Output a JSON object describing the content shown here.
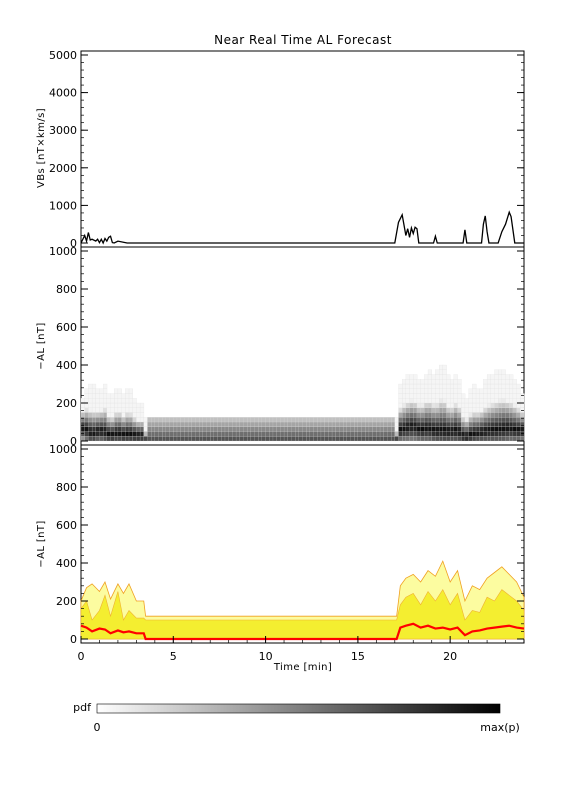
{
  "chart_data": [
    {
      "type": "line",
      "title": "Near Real Time AL Forecast",
      "ylabel": "VBs [nT×km/s]",
      "ylim": [
        0,
        5000
      ],
      "yticks": [
        0,
        1000,
        2000,
        3000,
        4000,
        5000
      ],
      "xlim": [
        0,
        24
      ],
      "series": [
        {
          "x": [
            0.0,
            0.2,
            0.3,
            0.4,
            0.5,
            0.6,
            0.8,
            0.9,
            1.0,
            1.1,
            1.2,
            1.3,
            1.4,
            1.5,
            1.6,
            1.7,
            1.8,
            2.0,
            2.5,
            3.0,
            5,
            10,
            17.0,
            17.2,
            17.4,
            17.6,
            17.7,
            17.8,
            17.9,
            18.0,
            18.1,
            18.2,
            18.3,
            18.5,
            18.6,
            18.7,
            18.8,
            19.1,
            19.2,
            19.3,
            20.7,
            20.8,
            20.9,
            21.7,
            21.8,
            21.9,
            22.0,
            22.1,
            22.6,
            22.8,
            23.0,
            23.2,
            23.3,
            23.5,
            24.0
          ],
          "values": [
            0,
            200,
            50,
            280,
            80,
            100,
            50,
            100,
            10,
            100,
            0,
            120,
            50,
            150,
            180,
            10,
            0,
            50,
            0,
            0,
            0,
            0,
            0,
            550,
            750,
            200,
            380,
            150,
            400,
            250,
            420,
            380,
            0,
            0,
            0,
            0,
            0,
            0,
            180,
            0,
            0,
            350,
            0,
            0,
            500,
            720,
            300,
            0,
            0,
            300,
            500,
            820,
            700,
            0,
            0
          ]
        }
      ]
    },
    {
      "type": "heatmap",
      "ylabel": "−AL [nT]",
      "ylim": [
        0,
        1000
      ],
      "yticks": [
        0,
        200,
        400,
        600,
        800,
        1000
      ],
      "xlim": [
        0,
        24
      ],
      "description_bins": "pdf of predicted −AL per time bin, darkest near 0–50 nT"
    },
    {
      "type": "area",
      "ylabel": "−AL [nT]",
      "xlabel": "Time [min]",
      "ylim": [
        0,
        1000
      ],
      "yticks": [
        0,
        200,
        400,
        600,
        800,
        1000
      ],
      "xlim": [
        0,
        24
      ],
      "xticks": [
        0,
        5,
        10,
        15,
        20
      ],
      "x": [
        0.0,
        0.3,
        0.6,
        1.0,
        1.3,
        1.6,
        2.0,
        2.3,
        2.6,
        3.0,
        3.4,
        3.5,
        5,
        10,
        15,
        17.1,
        17.3,
        17.6,
        18.0,
        18.4,
        18.8,
        19.2,
        19.6,
        20.0,
        20.4,
        20.8,
        21.2,
        21.6,
        22.0,
        22.4,
        22.8,
        23.2,
        23.6,
        24.0
      ],
      "series": [
        {
          "name": "upper",
          "color": "#f0a020",
          "values": [
            200,
            270,
            290,
            250,
            300,
            210,
            290,
            240,
            290,
            200,
            200,
            120,
            120,
            120,
            120,
            120,
            280,
            320,
            340,
            300,
            360,
            330,
            410,
            300,
            360,
            200,
            280,
            260,
            320,
            350,
            380,
            340,
            300,
            220
          ]
        },
        {
          "name": "inner",
          "color": "#f8f020",
          "values": [
            160,
            200,
            100,
            150,
            230,
            120,
            250,
            100,
            150,
            110,
            110,
            100,
            100,
            100,
            100,
            100,
            180,
            220,
            240,
            180,
            250,
            200,
            260,
            180,
            240,
            100,
            150,
            140,
            220,
            200,
            260,
            230,
            200,
            150
          ]
        },
        {
          "name": "median",
          "color": "#ff0000",
          "values": [
            70,
            60,
            40,
            55,
            50,
            30,
            45,
            35,
            40,
            30,
            30,
            0,
            0,
            0,
            0,
            0,
            60,
            70,
            80,
            60,
            70,
            55,
            60,
            50,
            60,
            20,
            40,
            45,
            55,
            60,
            65,
            70,
            60,
            55
          ]
        }
      ]
    }
  ],
  "colorbar": {
    "label": "pdf",
    "min_label": "0",
    "max_label": "max(p)"
  }
}
